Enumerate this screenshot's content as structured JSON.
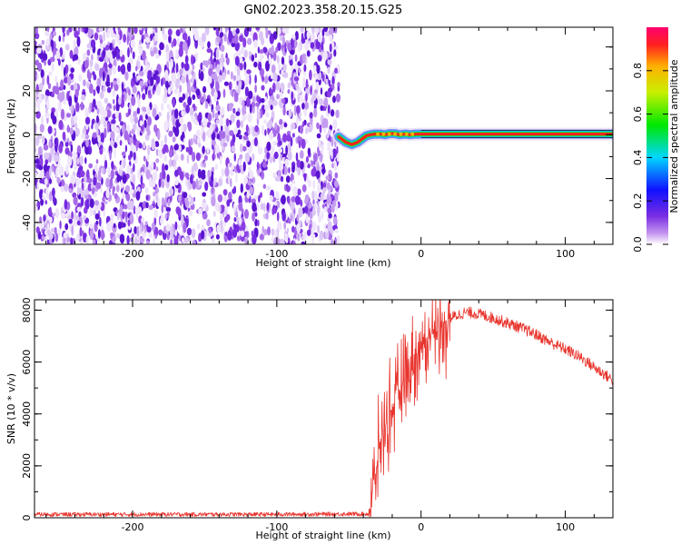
{
  "figure": {
    "title": "GN02.2023.358.20.15.G25"
  },
  "colorbar": {
    "label": "Normalized spectral amplitude",
    "ticks": [
      "0.0",
      "0.2",
      "0.4",
      "0.6",
      "0.8"
    ],
    "range": [
      0,
      1
    ]
  },
  "chart_data": [
    {
      "type": "heatmap",
      "title": "",
      "xlabel": "Height of straight line (km)",
      "ylabel": "Frequency (Hz)",
      "xlim": [
        -268,
        133
      ],
      "ylim": [
        -50,
        49
      ],
      "x_ticks": [
        -200,
        -100,
        0,
        100
      ],
      "x_tick_labels": [
        "-200",
        "-100",
        "0",
        "100"
      ],
      "y_ticks": [
        -40,
        -20,
        0,
        20,
        40
      ],
      "y_tick_labels": [
        "-40",
        "-20",
        "0",
        "20",
        "40"
      ],
      "noise_region_x": [
        -268,
        -57
      ],
      "signal_start_x": -57,
      "signal_track": {
        "x": [
          -57,
          -54,
          -52,
          -50,
          -48,
          -46,
          -44,
          -42,
          -40,
          -38,
          -35,
          -32,
          -28,
          -25,
          -22,
          -18,
          -15,
          -12,
          -10,
          -8,
          -5,
          -2,
          0,
          20,
          50,
          80,
          110,
          133
        ],
        "freq": [
          -1,
          -2.5,
          -3.5,
          -4,
          -4.5,
          -4,
          -3.5,
          -2.5,
          -1.5,
          -0.5,
          0,
          0.3,
          0.3,
          0,
          0.5,
          0.5,
          0,
          0.2,
          0.3,
          0,
          0.2,
          0.3,
          0.3,
          0.3,
          0.3,
          0.3,
          0.3,
          0.3
        ]
      }
    },
    {
      "type": "line",
      "title": "",
      "xlabel": "Height of straight line (km)",
      "ylabel": "SNR (10 * v/v)",
      "xlim": [
        -268,
        133
      ],
      "ylim": [
        0,
        8400
      ],
      "x_ticks": [
        -200,
        -100,
        0,
        100
      ],
      "x_tick_labels": [
        "-200",
        "-100",
        "0",
        "100"
      ],
      "y_ticks": [
        0,
        2000,
        4000,
        6000,
        8000
      ],
      "y_tick_labels": [
        "0",
        "2000",
        "4000",
        "6000",
        "8000"
      ],
      "color": "#e8352e",
      "series": [
        {
          "x": [
            -268,
            -100,
            -36,
            -34,
            -32,
            -30,
            -28,
            -25,
            -22,
            -18,
            -15,
            -12,
            -8,
            -4,
            0,
            5,
            10,
            15,
            20,
            25,
            30,
            35,
            40,
            50,
            60,
            70,
            80,
            90,
            100,
            110,
            120,
            133
          ],
          "y": [
            130,
            130,
            150,
            800,
            1500,
            2300,
            3000,
            3500,
            4000,
            4400,
            4900,
            5300,
            5800,
            6200,
            6500,
            6900,
            7200,
            7500,
            7700,
            7800,
            7900,
            7900,
            7850,
            7700,
            7500,
            7300,
            7050,
            6750,
            6500,
            6200,
            5800,
            5300
          ]
        }
      ]
    }
  ]
}
